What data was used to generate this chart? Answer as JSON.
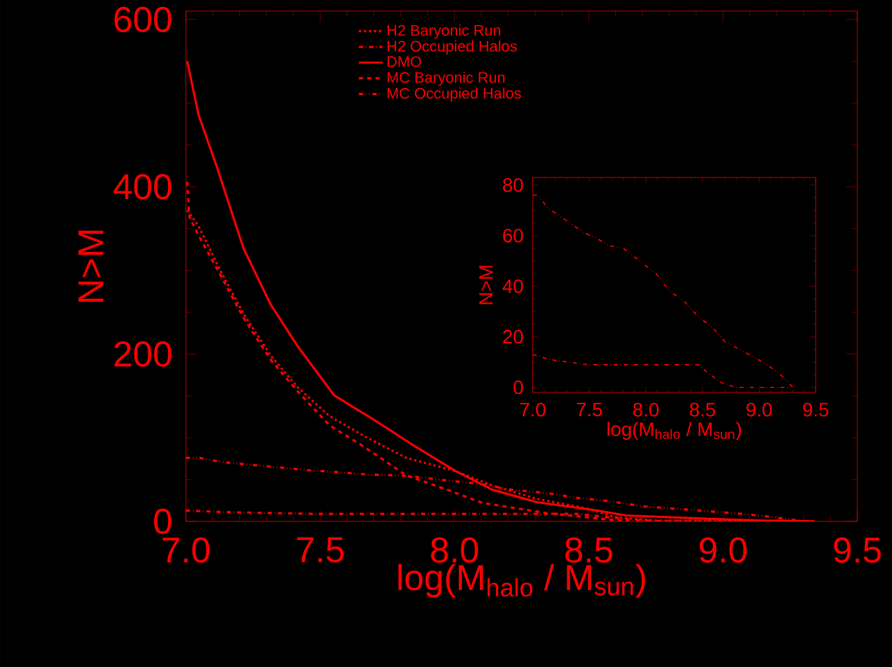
{
  "chart_data": [
    {
      "type": "line",
      "xlabel": "log(M$_{halo}$ / M$_{sun}$)",
      "ylabel": "N>M",
      "xlim": [
        7,
        9.5
      ],
      "ylim": [
        0,
        610
      ],
      "xticks": [
        {
          "value": 7,
          "label": "7.0"
        },
        {
          "value": 7.5,
          "label": "7.5"
        },
        {
          "value": 8,
          "label": "8.0"
        },
        {
          "value": 8.5,
          "label": "8.5"
        },
        {
          "value": 9,
          "label": "9.0"
        },
        {
          "value": 9.5,
          "label": "9.5"
        }
      ],
      "yticks": [
        0,
        200,
        400,
        600
      ],
      "legend": "top",
      "series": [
        {
          "name": "H2 Baryonic Run",
          "color": "#ff0000",
          "line_style": "dotted",
          "x": [
            7.005,
            7.047,
            7.131,
            7.215,
            7.316,
            7.417,
            7.534,
            7.669,
            7.82,
            8.005,
            8.14,
            8.306,
            8.5,
            8.6,
            8.75,
            9.0,
            9.3
          ],
          "values": [
            372,
            353,
            298,
            248,
            198,
            160,
            126,
            101,
            76,
            60,
            43,
            27,
            15,
            5,
            1,
            0,
            0
          ]
        },
        {
          "name": "H2 Occupied Halos",
          "color": "#ff0000",
          "line_style": "dashdot",
          "x": [
            7.0,
            7.15,
            7.48,
            8.09,
            8.46,
            8.54,
            8.66,
            8.79,
            9.28
          ],
          "values": [
            13,
            11,
            9,
            9,
            9,
            6,
            2,
            0,
            0
          ]
        },
        {
          "name": "DMO",
          "color": "#ff0000",
          "line_style": "solid",
          "x": [
            7.005,
            7.047,
            7.114,
            7.215,
            7.316,
            7.417,
            7.551,
            7.702,
            7.837,
            8.005,
            8.14,
            8.306,
            8.53,
            8.64,
            8.95,
            9.15,
            9.34
          ],
          "values": [
            550,
            486,
            425,
            326,
            259,
            209,
            151,
            121,
            93,
            60,
            38,
            23,
            13,
            7,
            3,
            1,
            0
          ]
        },
        {
          "name": "MC Baryonic Run",
          "color": "#ff0000",
          "line_style": "dashed",
          "x": [
            7.005,
            7.013,
            7.047,
            7.131,
            7.215,
            7.316,
            7.417,
            7.534,
            7.669,
            7.82,
            7.971,
            8.105,
            8.341,
            8.55,
            8.65
          ],
          "values": [
            406,
            364,
            342,
            293,
            243,
            193,
            155,
            115,
            88,
            55,
            38,
            22,
            10,
            3,
            0
          ]
        },
        {
          "name": "MC Occupied Halos",
          "color": "#ff0000",
          "line_style": "dashdotdot",
          "x": [
            7.0,
            7.05,
            7.13,
            7.23,
            7.33,
            7.46,
            7.56,
            7.68,
            7.8,
            7.89,
            7.97,
            8.09,
            8.21,
            8.34,
            8.46,
            8.58,
            8.7,
            8.83,
            8.95,
            9.07,
            9.19,
            9.3
          ],
          "values": [
            76,
            76,
            71,
            68,
            65,
            61,
            59,
            56,
            55,
            52,
            49,
            45,
            38,
            34,
            28,
            24,
            18,
            15,
            12,
            9,
            5,
            0
          ]
        }
      ]
    },
    {
      "type": "line",
      "xlabel": "log(M$_{halo}$ / M$_{sun}$)",
      "ylabel": "N>M",
      "xlim": [
        7,
        9.5
      ],
      "ylim": [
        -2,
        83
      ],
      "xticks": [
        {
          "value": 7,
          "label": "7.0"
        },
        {
          "value": 7.5,
          "label": "7.5"
        },
        {
          "value": 8,
          "label": "8.0"
        },
        {
          "value": 8.5,
          "label": "8.5"
        },
        {
          "value": 9,
          "label": "9.0"
        },
        {
          "value": 9.5,
          "label": "9.5"
        }
      ],
      "yticks": [
        0,
        20,
        40,
        60,
        80
      ],
      "series": [
        {
          "color": "#ff0000",
          "line_style": "dashdotdot",
          "x": [
            7.0,
            7.05,
            7.13,
            7.23,
            7.33,
            7.46,
            7.56,
            7.68,
            7.8,
            7.89,
            7.97,
            8.09,
            8.21,
            8.34,
            8.46,
            8.58,
            8.7,
            8.83,
            8.95,
            9.07,
            9.19,
            9.3
          ],
          "values": [
            76,
            76,
            71,
            68,
            65,
            61,
            59,
            56,
            55,
            52,
            49,
            45,
            38,
            34,
            28,
            24,
            18,
            15,
            12,
            9,
            5,
            0
          ]
        },
        {
          "color": "#ff0000",
          "line_style": "dashdot",
          "x": [
            7.0,
            7.15,
            7.48,
            8.09,
            8.46,
            8.54,
            8.66,
            8.79,
            9.28
          ],
          "values": [
            13,
            11,
            9,
            9,
            9,
            6,
            2,
            0,
            0
          ]
        }
      ]
    }
  ]
}
